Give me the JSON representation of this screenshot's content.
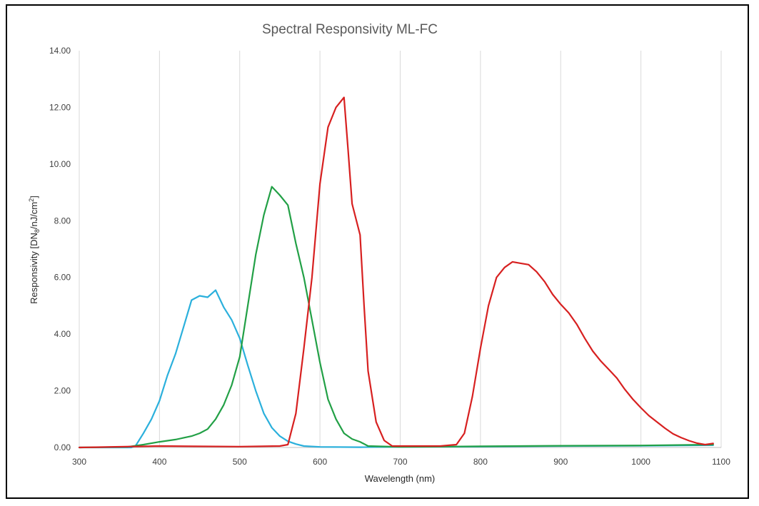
{
  "chart_data": {
    "type": "line",
    "title": "Spectral Responsivity ML-FC",
    "xlabel": "Wavelength (nm)",
    "ylabel": "Responsivity [DN8/nJ/cm2]",
    "ylabel_parts": {
      "pre": "Responsivity [DN",
      "sub": "8",
      "mid": "/nJ/cm",
      "sup": "2",
      "post": "]"
    },
    "xlim": [
      300,
      1100
    ],
    "ylim": [
      0,
      14
    ],
    "xticks": [
      "300",
      "400",
      "500",
      "600",
      "700",
      "800",
      "900",
      "1000",
      "1100"
    ],
    "xtick_values": [
      300,
      400,
      500,
      600,
      700,
      800,
      900,
      1000,
      1100
    ],
    "yticks": [
      "0.00",
      "2.00",
      "4.00",
      "6.00",
      "8.00",
      "10.00",
      "12.00",
      "14.00"
    ],
    "ytick_values": [
      0,
      2,
      4,
      6,
      8,
      10,
      12,
      14
    ],
    "grid": "vertical",
    "legend": "none",
    "series": [
      {
        "color": "#2bb0dc",
        "x": [
          300,
          365,
          370,
          380,
          390,
          400,
          410,
          420,
          430,
          440,
          450,
          460,
          470,
          480,
          490,
          500,
          510,
          520,
          530,
          540,
          550,
          560,
          570,
          580,
          600,
          650,
          700,
          800,
          900,
          1000,
          1090
        ],
        "y": [
          0,
          0,
          0.05,
          0.5,
          1.0,
          1.65,
          2.55,
          3.3,
          4.25,
          5.2,
          5.35,
          5.3,
          5.55,
          4.95,
          4.5,
          3.85,
          2.9,
          2.0,
          1.2,
          0.7,
          0.4,
          0.22,
          0.12,
          0.05,
          0.02,
          0.01,
          0.02,
          0.03,
          0.05,
          0.06,
          0.08
        ]
      },
      {
        "color": "#22a046",
        "x": [
          300,
          360,
          380,
          400,
          420,
          440,
          450,
          460,
          470,
          480,
          490,
          500,
          510,
          520,
          530,
          540,
          550,
          560,
          570,
          580,
          590,
          600,
          610,
          620,
          630,
          640,
          650,
          660,
          700,
          800,
          900,
          1000,
          1090
        ],
        "y": [
          0,
          0.02,
          0.1,
          0.2,
          0.28,
          0.4,
          0.5,
          0.65,
          1.0,
          1.5,
          2.2,
          3.2,
          5.0,
          6.8,
          8.2,
          9.2,
          8.9,
          8.55,
          7.2,
          6.0,
          4.5,
          3.0,
          1.7,
          1.0,
          0.5,
          0.3,
          0.2,
          0.05,
          0.02,
          0.04,
          0.06,
          0.07,
          0.1
        ]
      },
      {
        "color": "#d72020",
        "x": [
          300,
          400,
          500,
          550,
          560,
          570,
          580,
          590,
          600,
          610,
          620,
          630,
          635,
          640,
          650,
          655,
          660,
          670,
          680,
          690,
          700,
          750,
          770,
          780,
          790,
          800,
          810,
          820,
          830,
          840,
          850,
          860,
          870,
          880,
          890,
          900,
          910,
          920,
          930,
          940,
          950,
          960,
          970,
          980,
          990,
          1000,
          1010,
          1020,
          1030,
          1040,
          1050,
          1060,
          1070,
          1080,
          1090
        ],
        "y": [
          0,
          0.05,
          0.03,
          0.05,
          0.1,
          1.2,
          3.5,
          6.0,
          9.3,
          11.3,
          12.0,
          12.35,
          10.5,
          8.6,
          7.5,
          5.0,
          2.7,
          0.9,
          0.25,
          0.05,
          0.05,
          0.05,
          0.1,
          0.5,
          1.8,
          3.5,
          5.0,
          6.0,
          6.35,
          6.55,
          6.5,
          6.45,
          6.2,
          5.85,
          5.4,
          5.05,
          4.75,
          4.35,
          3.85,
          3.4,
          3.05,
          2.75,
          2.45,
          2.05,
          1.7,
          1.4,
          1.12,
          0.9,
          0.68,
          0.48,
          0.35,
          0.24,
          0.15,
          0.1,
          0.14
        ]
      }
    ]
  }
}
